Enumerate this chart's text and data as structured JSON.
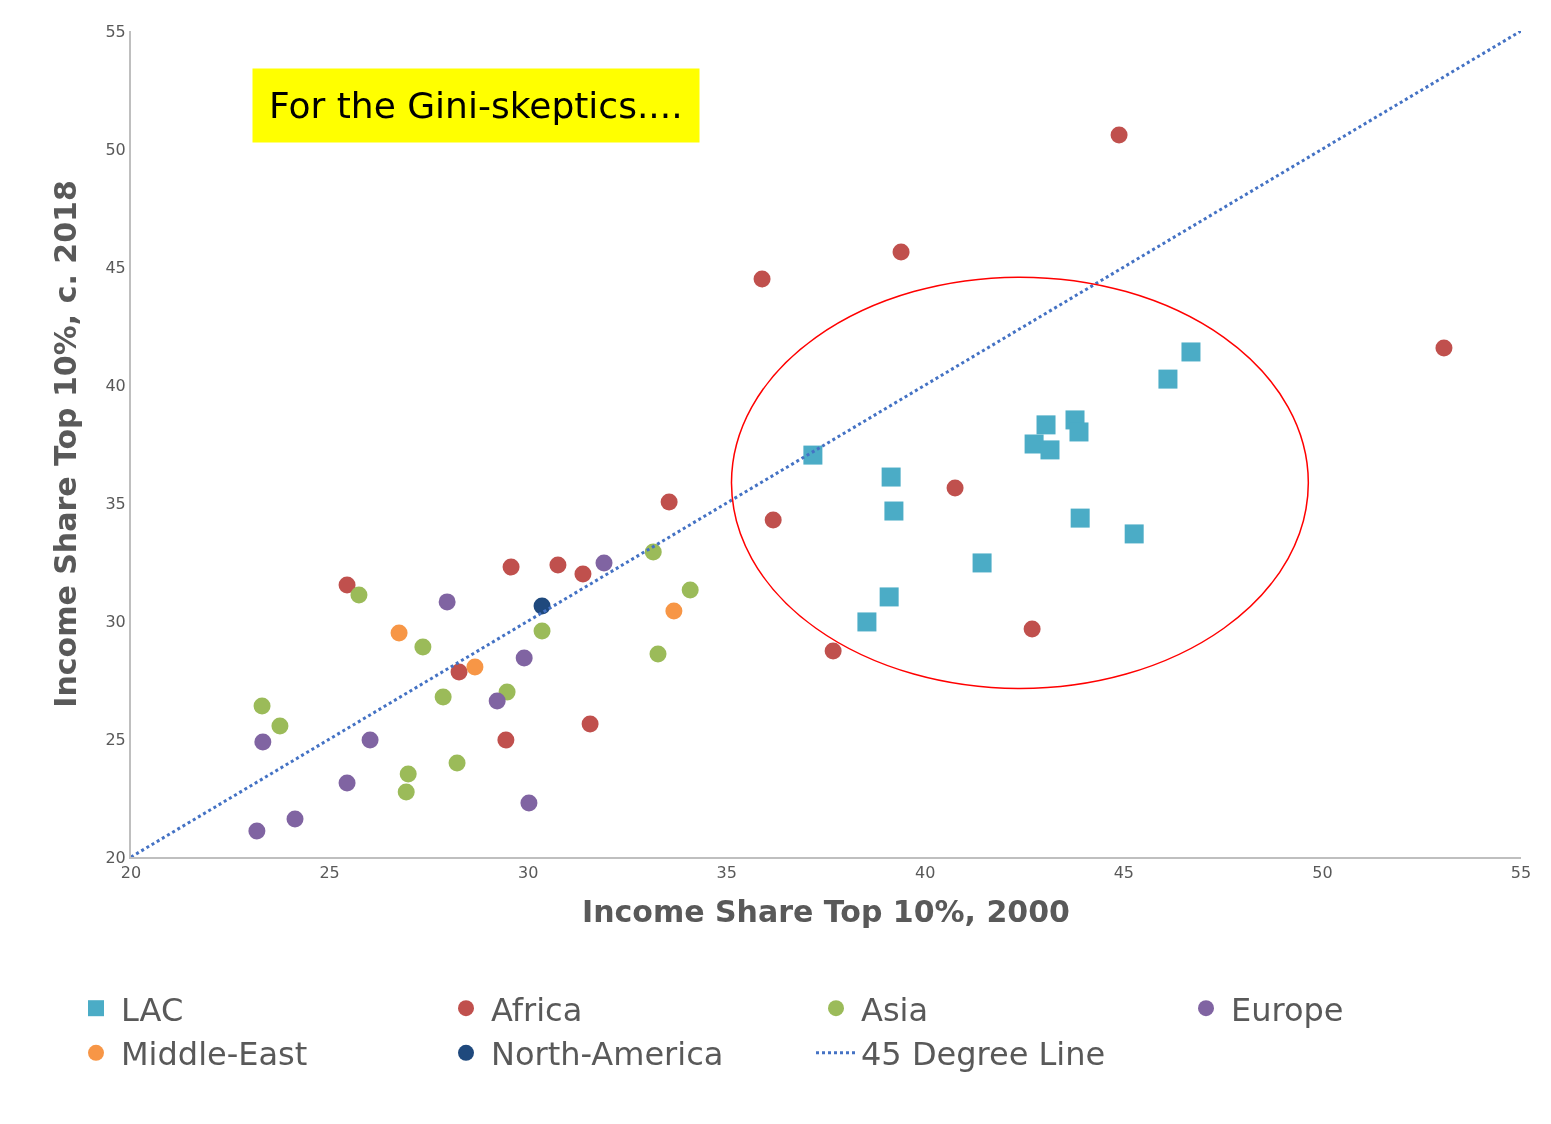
{
  "chart_data": {
    "type": "scatter",
    "title": "For the Gini-skeptics....",
    "xlabel": "Income Share Top 10%, 2000",
    "ylabel": "Income Share Top 10%, c. 2018",
    "xlim": [
      20,
      55
    ],
    "ylim": [
      20,
      55
    ],
    "xticks": [
      20,
      25,
      30,
      35,
      40,
      45,
      50,
      55
    ],
    "yticks": [
      20,
      25,
      30,
      35,
      40,
      45,
      50,
      55
    ],
    "legend": "bottom",
    "series": [
      {
        "name": "LAC",
        "color": "#4bacc6",
        "marker": "square",
        "x": [
          37.17,
          39.14,
          39.21,
          38.53,
          39.09,
          41.43,
          43.04,
          42.74,
          43.14,
          43.77,
          43.87,
          43.9,
          45.26,
          46.11,
          46.69
        ],
        "values": [
          37.03,
          36.1,
          34.66,
          29.96,
          31.02,
          32.46,
          38.31,
          37.5,
          37.25,
          38.52,
          38.01,
          34.36,
          33.69,
          40.25,
          41.4
        ]
      },
      {
        "name": "Africa",
        "color": "#c0504d",
        "marker": "circle",
        "x": [
          44.88,
          39.39,
          35.89,
          53.06,
          40.75,
          36.17,
          33.55,
          30.75,
          29.57,
          31.38,
          25.44,
          28.26,
          29.44,
          31.56,
          37.68,
          42.69
        ],
        "values": [
          50.59,
          45.64,
          44.49,
          41.57,
          35.64,
          34.28,
          35.04,
          32.37,
          32.29,
          31.99,
          31.53,
          27.84,
          24.96,
          25.64,
          28.73,
          29.66
        ]
      },
      {
        "name": "Asia",
        "color": "#9bbb59",
        "marker": "circle",
        "x": [
          33.15,
          34.08,
          25.74,
          30.35,
          27.35,
          33.27,
          23.3,
          23.75,
          27.86,
          29.47,
          26.98,
          28.21,
          26.93
        ],
        "values": [
          32.92,
          31.31,
          31.1,
          29.58,
          28.9,
          28.6,
          26.4,
          25.55,
          26.78,
          26.99,
          23.52,
          23.98,
          22.75
        ]
      },
      {
        "name": "Europe",
        "color": "#8064a2",
        "marker": "circle",
        "x": [
          31.91,
          27.96,
          29.9,
          29.22,
          23.32,
          26.02,
          25.44,
          24.13,
          23.17,
          30.02
        ],
        "values": [
          32.46,
          30.81,
          28.43,
          26.61,
          24.87,
          24.96,
          23.14,
          21.61,
          21.1,
          22.29
        ]
      },
      {
        "name": "Middle-East",
        "color": "#f79646",
        "marker": "circle",
        "x": [
          26.75,
          28.66,
          33.67
        ],
        "values": [
          29.49,
          28.05,
          30.42
        ]
      },
      {
        "name": "North-America",
        "color": "#1f497d",
        "marker": "circle",
        "x": [
          30.35
        ],
        "values": [
          30.64
        ]
      },
      {
        "name": "45 Degree Line",
        "color": "#4472c4",
        "type": "line",
        "marker": "none",
        "line_style": "dotted",
        "x": [
          20,
          55
        ],
        "values": [
          20,
          55
        ]
      }
    ]
  }
}
